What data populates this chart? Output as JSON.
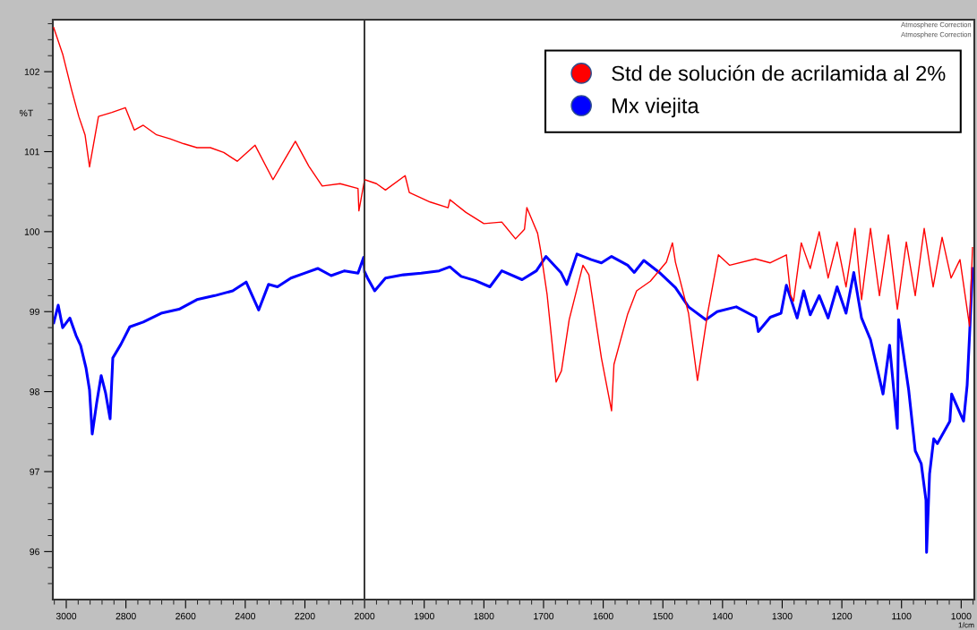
{
  "chart_data": [
    {
      "type": "line",
      "ylabel": "%T",
      "xlim": [
        3045,
        2000
      ],
      "xticks": [
        3000,
        2800,
        2600,
        2400,
        2200
      ],
      "ylim": [
        95.4,
        102.65
      ],
      "yticks": [
        96,
        97,
        98,
        99,
        100,
        101,
        102
      ],
      "grid": false,
      "tick_labels": true,
      "series": [
        {
          "color": "#ff0000",
          "x": [
            3042,
            3012,
            2982,
            2958,
            2937,
            2922,
            2892,
            2847,
            2802,
            2772,
            2742,
            2697,
            2652,
            2607,
            2562,
            2517,
            2472,
            2427,
            2367,
            2307,
            2268,
            2232,
            2187,
            2142,
            2082,
            2022,
            2019,
            2000
          ],
          "values": [
            102.55,
            102.22,
            101.77,
            101.44,
            101.21,
            100.81,
            101.44,
            101.49,
            101.55,
            101.27,
            101.33,
            101.21,
            101.16,
            101.1,
            101.05,
            101.05,
            100.99,
            100.88,
            101.08,
            100.65,
            100.9,
            101.13,
            100.82,
            100.57,
            100.6,
            100.54,
            100.26,
            100.65
          ]
        },
        {
          "color": "#0000ff",
          "x": [
            3042,
            3027,
            3012,
            2988,
            2967,
            2952,
            2934,
            2922,
            2913,
            2898,
            2883,
            2868,
            2853,
            2844,
            2817,
            2787,
            2742,
            2682,
            2622,
            2562,
            2502,
            2442,
            2397,
            2355,
            2322,
            2292,
            2247,
            2202,
            2157,
            2112,
            2067,
            2022,
            2003,
            2000
          ],
          "values": [
            98.86,
            99.08,
            98.8,
            98.92,
            98.7,
            98.58,
            98.3,
            98.02,
            97.47,
            97.86,
            98.2,
            97.98,
            97.66,
            98.42,
            98.59,
            98.81,
            98.87,
            98.98,
            99.03,
            99.15,
            99.2,
            99.26,
            99.37,
            99.02,
            99.34,
            99.31,
            99.42,
            99.48,
            99.54,
            99.45,
            99.51,
            99.48,
            99.68,
            99.5
          ]
        }
      ]
    },
    {
      "type": "line",
      "xlabel": "1/cm",
      "annotations": [
        "Atmosphere Correction",
        "Atmosphere Correction"
      ],
      "xlim": [
        2000,
        978
      ],
      "xticks": [
        2000,
        1900,
        1800,
        1700,
        1600,
        1500,
        1400,
        1300,
        1200,
        1100,
        1000
      ],
      "ylim": [
        95.4,
        102.65
      ],
      "yticks": [
        96,
        97,
        98,
        99,
        100,
        101,
        102
      ],
      "grid": false,
      "legend": "top right",
      "tick_labels": "x",
      "series": [
        {
          "name": "Std de solución de acrilamida al 2%",
          "color": "#ff0000",
          "x": [
            2000,
            1980,
            1965,
            1932,
            1925,
            1890,
            1860,
            1857,
            1830,
            1800,
            1770,
            1747,
            1732,
            1728,
            1710,
            1705,
            1694,
            1679,
            1670,
            1657,
            1634,
            1624,
            1603,
            1586,
            1582,
            1559,
            1544,
            1521,
            1494,
            1484,
            1479,
            1457,
            1442,
            1425,
            1407,
            1388,
            1345,
            1320,
            1293,
            1286,
            1281,
            1268,
            1253,
            1238,
            1223,
            1208,
            1193,
            1178,
            1167,
            1152,
            1137,
            1122,
            1107,
            1092,
            1077,
            1062,
            1047,
            1032,
            1017,
            1002,
            986,
            981
          ],
          "values": [
            100.65,
            100.6,
            100.52,
            100.7,
            100.49,
            100.37,
            100.3,
            100.4,
            100.24,
            100.1,
            100.12,
            99.91,
            100.03,
            100.3,
            99.98,
            99.77,
            99.21,
            98.12,
            98.26,
            98.9,
            99.58,
            99.46,
            98.42,
            97.76,
            98.34,
            98.97,
            99.26,
            99.38,
            99.62,
            99.86,
            99.62,
            98.98,
            98.14,
            98.98,
            99.71,
            99.58,
            99.66,
            99.61,
            99.71,
            99.21,
            99.13,
            99.86,
            99.54,
            100.0,
            99.42,
            99.87,
            99.31,
            100.04,
            99.15,
            100.04,
            99.2,
            99.96,
            99.03,
            99.87,
            99.2,
            100.04,
            99.31,
            99.93,
            99.42,
            99.65,
            98.82,
            99.8
          ]
        },
        {
          "name": "Mx viejita",
          "color": "#0000ff",
          "x": [
            2000,
            1995,
            1983,
            1965,
            1935,
            1905,
            1875,
            1857,
            1838,
            1815,
            1790,
            1770,
            1736,
            1712,
            1696,
            1671,
            1661,
            1644,
            1620,
            1603,
            1586,
            1559,
            1548,
            1532,
            1506,
            1479,
            1457,
            1428,
            1409,
            1377,
            1344,
            1340,
            1320,
            1302,
            1293,
            1275,
            1264,
            1253,
            1238,
            1223,
            1208,
            1193,
            1180,
            1167,
            1152,
            1143,
            1131,
            1120,
            1107,
            1105,
            1088,
            1077,
            1067,
            1059,
            1058,
            1053,
            1046,
            1040,
            1019,
            1016,
            996,
            990,
            986,
            981
          ],
          "values": [
            99.5,
            99.42,
            99.26,
            99.42,
            99.46,
            99.48,
            99.51,
            99.56,
            99.44,
            99.39,
            99.31,
            99.51,
            99.4,
            99.51,
            99.69,
            99.49,
            99.34,
            99.72,
            99.65,
            99.61,
            99.69,
            99.58,
            99.49,
            99.64,
            99.49,
            99.3,
            99.06,
            98.9,
            99.0,
            99.06,
            98.93,
            98.75,
            98.93,
            98.98,
            99.33,
            98.92,
            99.26,
            98.96,
            99.2,
            98.92,
            99.31,
            98.98,
            99.49,
            98.92,
            98.65,
            98.36,
            97.97,
            98.58,
            97.54,
            98.9,
            98.02,
            97.26,
            97.1,
            96.64,
            95.99,
            96.97,
            97.41,
            97.35,
            97.63,
            97.97,
            97.63,
            98.08,
            98.7,
            99.54
          ]
        }
      ]
    }
  ]
}
